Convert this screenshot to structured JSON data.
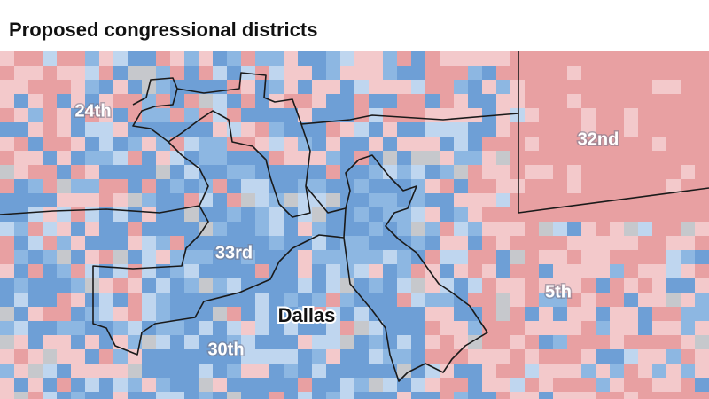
{
  "header": {
    "title": "Proposed congressional districts"
  },
  "labels": [
    "24th",
    "32nd",
    "33rd",
    "5th",
    "Dallas",
    "30th"
  ]
}
